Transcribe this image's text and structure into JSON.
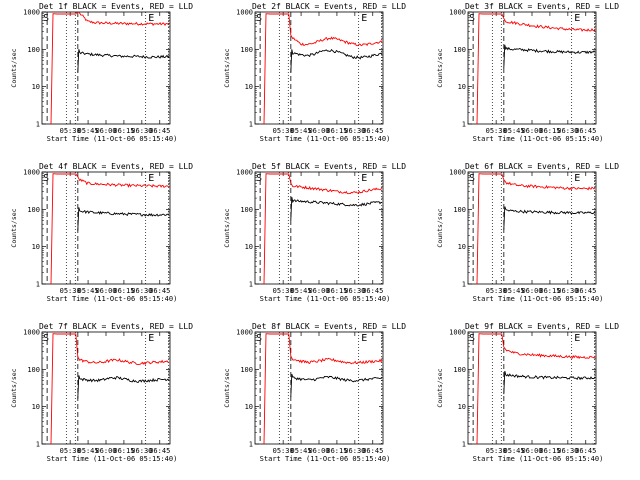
{
  "chart_data": [
    {
      "type": "line",
      "title": "Det 1f BLACK = Events, RED = LLD",
      "xlabel": "Start Time (11-Oct-06 05:15:40)",
      "ylabel": "Counts/sec",
      "x_ticks": [
        "05:30",
        "05:45",
        "06:00",
        "06:15",
        "06:30",
        "06:45"
      ],
      "y_ticks": [
        "1",
        "10",
        "100",
        "1000"
      ],
      "ylim": [
        1,
        1000
      ],
      "yscale": "log",
      "markers": [
        "S",
        "E"
      ],
      "grid": false,
      "series": [
        {
          "color": "#ff0000",
          "values": [
            900,
            560,
            520,
            510,
            500,
            495,
            490,
            490,
            485,
            485,
            480,
            480,
            478
          ]
        },
        {
          "color": "#000000",
          "values": [
            80,
            75,
            72,
            70,
            68,
            66,
            65,
            65,
            64,
            63,
            62,
            63,
            64
          ]
        }
      ]
    },
    {
      "type": "line",
      "title": "Det 2f BLACK = Events, RED = LLD",
      "xlabel": "Start Time (11-Oct-06 05:15:40)",
      "ylabel": "Counts/sec",
      "x_ticks": [
        "05:30",
        "05:45",
        "06:00",
        "06:15",
        "06:30",
        "06:45"
      ],
      "y_ticks": [
        "1",
        "10",
        "100",
        "1000"
      ],
      "ylim": [
        1,
        1000
      ],
      "yscale": "log",
      "markers": [
        "S",
        "E"
      ],
      "grid": false,
      "series": [
        {
          "color": "#ff0000",
          "values": [
            200,
            140,
            135,
            150,
            180,
            200,
            185,
            160,
            140,
            130,
            135,
            150,
            160
          ]
        },
        {
          "color": "#000000",
          "values": [
            80,
            72,
            68,
            75,
            90,
            95,
            85,
            72,
            62,
            60,
            63,
            70,
            78
          ]
        }
      ]
    },
    {
      "type": "line",
      "title": "Det 3f BLACK = Events, RED = LLD",
      "xlabel": "Start Time (11-Oct-06 05:15:40)",
      "ylabel": "Counts/sec",
      "x_ticks": [
        "05:30",
        "05:45",
        "06:00",
        "06:15",
        "06:30",
        "06:45"
      ],
      "y_ticks": [
        "1",
        "10",
        "100",
        "1000"
      ],
      "ylim": [
        1,
        1000
      ],
      "yscale": "log",
      "markers": [
        "S",
        "E"
      ],
      "grid": false,
      "series": [
        {
          "color": "#ff0000",
          "values": [
            560,
            520,
            480,
            450,
            420,
            400,
            380,
            365,
            350,
            340,
            330,
            330,
            340
          ]
        },
        {
          "color": "#000000",
          "values": [
            105,
            100,
            98,
            95,
            92,
            90,
            88,
            86,
            85,
            84,
            83,
            84,
            86
          ]
        }
      ]
    },
    {
      "type": "line",
      "title": "Det 4f BLACK = Events, RED = LLD",
      "xlabel": "Start Time (11-Oct-06 05:15:40)",
      "ylabel": "Counts/sec",
      "x_ticks": [
        "05:30",
        "05:45",
        "06:00",
        "06:15",
        "06:30",
        "06:45"
      ],
      "y_ticks": [
        "1",
        "10",
        "100",
        "1000"
      ],
      "ylim": [
        1,
        1000
      ],
      "yscale": "log",
      "markers": [
        "S",
        "E"
      ],
      "grid": false,
      "series": [
        {
          "color": "#ff0000",
          "values": [
            620,
            500,
            480,
            470,
            460,
            450,
            440,
            435,
            430,
            425,
            420,
            415,
            420
          ]
        },
        {
          "color": "#000000",
          "values": [
            90,
            85,
            82,
            80,
            78,
            76,
            75,
            74,
            73,
            72,
            71,
            72,
            73
          ]
        }
      ]
    },
    {
      "type": "line",
      "title": "Det 5f BLACK = Events, RED = LLD",
      "xlabel": "Start Time (11-Oct-06 05:15:40)",
      "ylabel": "Counts/sec",
      "x_ticks": [
        "05:30",
        "05:45",
        "06:00",
        "06:15",
        "06:30",
        "06:45"
      ],
      "y_ticks": [
        "1",
        "10",
        "100",
        "1000"
      ],
      "ylim": [
        1,
        1000
      ],
      "yscale": "log",
      "markers": [
        "S",
        "E"
      ],
      "grid": false,
      "series": [
        {
          "color": "#ff0000",
          "values": [
            420,
            400,
            380,
            360,
            340,
            320,
            300,
            290,
            280,
            290,
            320,
            340,
            360
          ]
        },
        {
          "color": "#000000",
          "values": [
            170,
            165,
            160,
            155,
            150,
            145,
            140,
            135,
            130,
            132,
            140,
            150,
            155
          ]
        }
      ]
    },
    {
      "type": "line",
      "title": "Det 6f BLACK = Events, RED = LLD",
      "xlabel": "Start Time (11-Oct-06 05:15:40)",
      "ylabel": "Counts/sec",
      "x_ticks": [
        "05:30",
        "05:45",
        "06:00",
        "06:15",
        "06:30",
        "06:45"
      ],
      "y_ticks": [
        "1",
        "10",
        "100",
        "1000"
      ],
      "ylim": [
        1,
        1000
      ],
      "yscale": "log",
      "markers": [
        "S",
        "E"
      ],
      "grid": false,
      "series": [
        {
          "color": "#ff0000",
          "values": [
            520,
            460,
            430,
            420,
            410,
            400,
            390,
            380,
            370,
            365,
            360,
            360,
            370
          ]
        },
        {
          "color": "#000000",
          "values": [
            95,
            90,
            88,
            86,
            85,
            84,
            83,
            82,
            82,
            81,
            80,
            81,
            82
          ]
        }
      ]
    },
    {
      "type": "line",
      "title": "Det 7f BLACK = Events, RED = LLD",
      "xlabel": "Start Time (11-Oct-06 05:15:40)",
      "ylabel": "Counts/sec",
      "x_ticks": [
        "05:30",
        "05:45",
        "06:00",
        "06:15",
        "06:30",
        "06:45"
      ],
      "y_ticks": [
        "1",
        "10",
        "100",
        "1000"
      ],
      "ylim": [
        1,
        1000
      ],
      "yscale": "log",
      "markers": [
        "S",
        "E"
      ],
      "grid": false,
      "series": [
        {
          "color": "#ff0000",
          "values": [
            180,
            160,
            150,
            155,
            170,
            180,
            165,
            150,
            145,
            150,
            155,
            160,
            165
          ]
        },
        {
          "color": "#000000",
          "values": [
            55,
            52,
            50,
            52,
            58,
            60,
            55,
            50,
            48,
            50,
            52,
            54,
            55
          ]
        }
      ]
    },
    {
      "type": "line",
      "title": "Det 8f BLACK = Events, RED = LLD",
      "xlabel": "Start Time (11-Oct-06 05:15:40)",
      "ylabel": "Counts/sec",
      "x_ticks": [
        "05:30",
        "05:45",
        "06:00",
        "06:15",
        "06:30",
        "06:45"
      ],
      "y_ticks": [
        "1",
        "10",
        "100",
        "1000"
      ],
      "ylim": [
        1,
        1000
      ],
      "yscale": "log",
      "markers": [
        "S",
        "E"
      ],
      "grid": false,
      "series": [
        {
          "color": "#ff0000",
          "values": [
            190,
            165,
            155,
            160,
            175,
            185,
            170,
            155,
            150,
            152,
            158,
            165,
            170
          ]
        },
        {
          "color": "#000000",
          "values": [
            60,
            55,
            52,
            54,
            60,
            62,
            57,
            52,
            50,
            51,
            54,
            56,
            58
          ]
        }
      ]
    },
    {
      "type": "line",
      "title": "Det 9f BLACK = Events, RED = LLD",
      "xlabel": "Start Time (11-Oct-06 05:15:40)",
      "ylabel": "Counts/sec",
      "x_ticks": [
        "05:30",
        "05:45",
        "06:00",
        "06:15",
        "06:30",
        "06:45"
      ],
      "y_ticks": [
        "1",
        "10",
        "100",
        "1000"
      ],
      "ylim": [
        1,
        1000
      ],
      "yscale": "log",
      "markers": [
        "S",
        "E"
      ],
      "grid": false,
      "series": [
        {
          "color": "#ff0000",
          "values": [
            330,
            280,
            260,
            250,
            240,
            235,
            230,
            225,
            220,
            215,
            210,
            212,
            215
          ]
        },
        {
          "color": "#000000",
          "values": [
            72,
            68,
            65,
            63,
            62,
            61,
            60,
            60,
            59,
            59,
            58,
            59,
            60
          ]
        }
      ]
    }
  ]
}
